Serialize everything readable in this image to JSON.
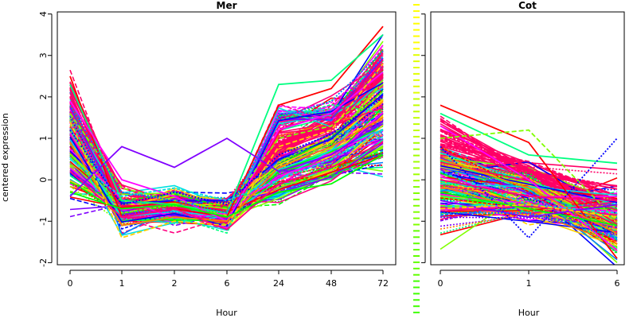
{
  "figure": {
    "ylabel": "centered expression"
  },
  "chart_data": [
    {
      "type": "line",
      "title": "Mer",
      "xlabel": "Hour",
      "ylabel": "centered expression",
      "categories": [
        "0",
        "1",
        "2",
        "6",
        "24",
        "48",
        "72"
      ],
      "ylim": [
        -2.05,
        4.05
      ],
      "yticks": [
        -2,
        -1,
        0,
        1,
        2,
        3,
        4
      ],
      "grid": false,
      "legend": "none",
      "line_count_approx": 220,
      "palette": [
        "#ff0000",
        "#ff8000",
        "#ffd000",
        "#80ff00",
        "#00ff00",
        "#00ff80",
        "#00e0e0",
        "#0080ff",
        "#0000ff",
        "#8000ff",
        "#ff00ff",
        "#ff0080"
      ],
      "series": [
        {
          "values": [
            2.5,
            -0.9,
            -0.7,
            -0.9,
            1.8,
            2.2,
            3.7
          ]
        },
        {
          "values": [
            2.3,
            -0.5,
            -0.6,
            -0.8,
            2.3,
            2.4,
            3.5
          ]
        },
        {
          "values": [
            1.9,
            0.0,
            -0.4,
            -1.0,
            1.2,
            1.6,
            2.6
          ]
        },
        {
          "values": [
            1.6,
            -0.2,
            -0.5,
            -0.7,
            1.0,
            1.3,
            2.3
          ]
        },
        {
          "values": [
            1.2,
            -0.6,
            -0.3,
            -0.6,
            0.6,
            1.1,
            2.0
          ]
        },
        {
          "values": [
            0.9,
            -1.1,
            -0.9,
            -1.0,
            0.3,
            0.8,
            1.5
          ]
        },
        {
          "values": [
            0.5,
            -0.4,
            -0.2,
            -0.5,
            0.0,
            0.5,
            1.2
          ]
        },
        {
          "values": [
            0.2,
            -0.9,
            -0.7,
            -1.2,
            -0.1,
            0.3,
            0.9
          ]
        },
        {
          "values": [
            -0.3,
            -0.7,
            -0.6,
            -0.9,
            -0.3,
            -0.1,
            0.6
          ]
        },
        {
          "values": [
            -0.4,
            0.8,
            0.3,
            1.0,
            0.2,
            0.6,
            1.4
          ]
        },
        {
          "values": [
            1.4,
            -1.4,
            -1.0,
            -1.1,
            0.8,
            1.2,
            2.8
          ]
        },
        {
          "values": [
            1.8,
            -0.3,
            -0.5,
            -0.8,
            1.5,
            1.9,
            3.1
          ]
        }
      ]
    },
    {
      "type": "line",
      "title": "Cot",
      "xlabel": "Hour",
      "categories": [
        "0",
        "1",
        "6"
      ],
      "ylim": [
        -2.05,
        4.05
      ],
      "grid": false,
      "legend": "none",
      "line_count_approx": 220,
      "palette": [
        "#ff0000",
        "#ff8000",
        "#ffd000",
        "#80ff00",
        "#00ff00",
        "#00ff80",
        "#00e0e0",
        "#0080ff",
        "#0000ff",
        "#8000ff",
        "#ff00ff",
        "#ff0080"
      ],
      "series": [
        {
          "values": [
            1.8,
            0.9,
            -1.9
          ]
        },
        {
          "values": [
            1.6,
            0.6,
            0.4
          ]
        },
        {
          "values": [
            1.3,
            0.0,
            -1.7
          ]
        },
        {
          "values": [
            1.0,
            1.2,
            -1.0
          ]
        },
        {
          "values": [
            0.8,
            -1.4,
            1.0
          ]
        },
        {
          "values": [
            0.5,
            -0.2,
            -1.3
          ]
        },
        {
          "values": [
            0.2,
            -0.6,
            -0.8
          ]
        },
        {
          "values": [
            0.0,
            -0.4,
            -0.5
          ]
        },
        {
          "values": [
            -0.3,
            -0.7,
            -1.1
          ]
        },
        {
          "values": [
            -0.5,
            -0.9,
            -0.6
          ]
        },
        {
          "values": [
            -0.7,
            -0.6,
            -0.9
          ]
        },
        {
          "values": [
            -0.8,
            -0.8,
            -1.4
          ]
        }
      ]
    }
  ]
}
